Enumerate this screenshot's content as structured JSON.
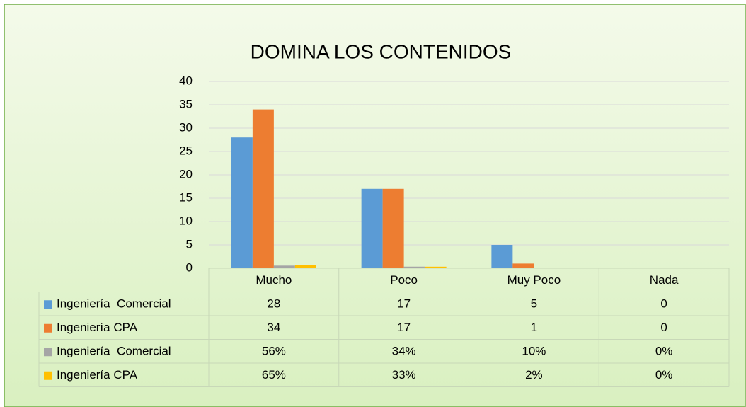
{
  "chart_data": {
    "type": "bar",
    "title": "DOMINA LOS CONTENIDOS",
    "categories": [
      "Mucho",
      "Poco",
      "Muy Poco",
      "Nada"
    ],
    "series": [
      {
        "name": "Ingeniería  Comercial",
        "color": "#5b9bd5",
        "values": [
          28,
          17,
          5,
          0
        ]
      },
      {
        "name": "Ingeniería CPA",
        "color": "#ed7d31",
        "values": [
          34,
          17,
          1,
          0
        ]
      },
      {
        "name": "Ingeniería  Comercial",
        "color": "#a5a5a5",
        "values": [
          0.56,
          0.34,
          0.1,
          0
        ],
        "value_labels": [
          "56%",
          "34%",
          "10%",
          "0%"
        ]
      },
      {
        "name": "Ingeniería CPA",
        "color": "#ffc000",
        "values": [
          0.65,
          0.33,
          0.02,
          0
        ],
        "value_labels": [
          "65%",
          "33%",
          "2%",
          "0%"
        ]
      }
    ],
    "ylim": [
      0,
      40
    ],
    "yticks": [
      0,
      5,
      10,
      15,
      20,
      25,
      30,
      35,
      40
    ],
    "grid": true,
    "data_table": true
  }
}
